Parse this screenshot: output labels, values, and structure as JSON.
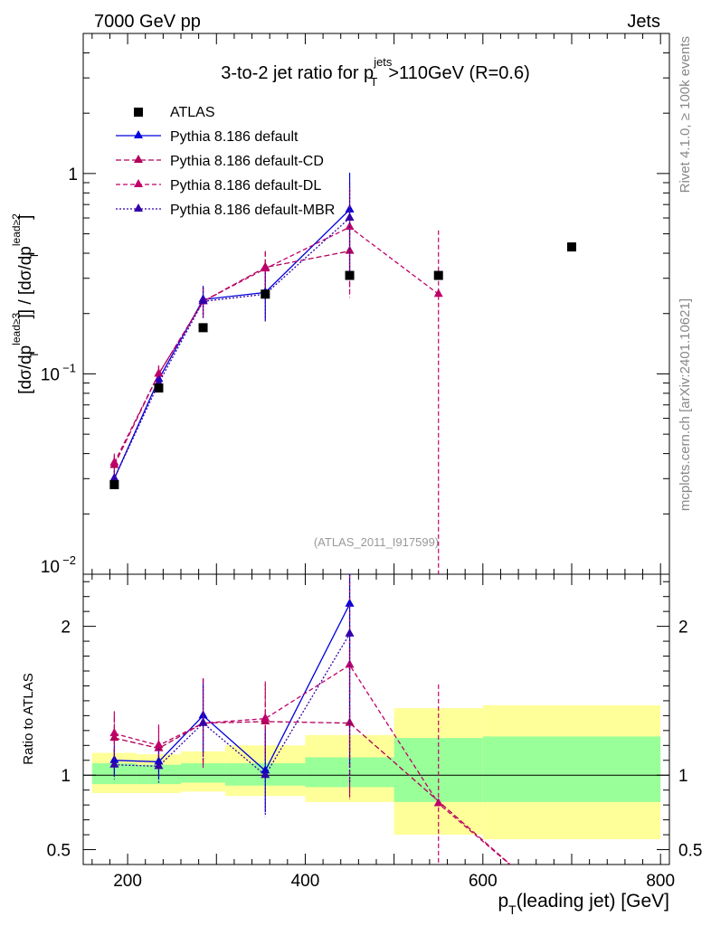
{
  "header": {
    "energy_label": "7000 GeV pp",
    "category_label": "Jets"
  },
  "side_labels": {
    "rivet": "Rivet 4.1.0, ≥ 100k events",
    "mcplots": "mcplots.cern.ch [arXiv:2401.10621]"
  },
  "chart_data": [
    {
      "type": "line",
      "scale": "log",
      "title_parts": {
        "prefix": "3-to-2 jet ratio for p",
        "sup": "jets",
        "sub": "T",
        "suffix": ">110GeV (R=0.6)"
      },
      "analysis_tag": "(ATLAS_2011_I917599)",
      "ylabel_parts": {
        "open": "[dσ/dp",
        "sup1": "lead≥3",
        "mid": "] / [dσ/dp",
        "sup2": "lead≥2",
        "close": "]",
        "sub": "T"
      },
      "xlim": [
        150,
        810
      ],
      "ylim": [
        0.01,
        5
      ],
      "yticks": [
        {
          "value": 1,
          "label": "1"
        },
        {
          "value": 0.1,
          "label": "10",
          "exp": "−1"
        },
        {
          "value": 0.01,
          "label": "10",
          "exp": "−2"
        }
      ],
      "data": {
        "name": "ATLAS",
        "x": [
          185,
          235,
          285,
          355,
          450,
          550,
          700
        ],
        "y": [
          0.028,
          0.085,
          0.17,
          0.25,
          0.31,
          0.31,
          0.43
        ]
      },
      "series": [
        {
          "name": "Pythia 8.186 default",
          "color": "#0000dd",
          "dash": "",
          "x": [
            185,
            235,
            285,
            355,
            450
          ],
          "y": [
            0.03,
            0.094,
            0.235,
            0.255,
            0.66
          ],
          "err": [
            0.003,
            0.008,
            0.04,
            0.07,
            0.35
          ]
        },
        {
          "name": "Pythia 8.186 default-CD",
          "color": "#b0005a",
          "dash": "6,3",
          "x": [
            185,
            235,
            285,
            355,
            450
          ],
          "y": [
            0.035,
            0.1,
            0.23,
            0.34,
            0.41
          ],
          "err": [
            0.004,
            0.01,
            0.04,
            0.07,
            0.15
          ]
        },
        {
          "name": "Pythia 8.186 default-DL",
          "color": "#c0006a",
          "dash": "5,3",
          "x": [
            185,
            235,
            285,
            355,
            450,
            550
          ],
          "y": [
            0.036,
            0.1,
            0.23,
            0.335,
            0.54,
            0.25
          ],
          "err": [
            0.004,
            0.01,
            0.04,
            0.07,
            0.3,
            0.27
          ]
        },
        {
          "name": "Pythia 8.186 default-MBR",
          "color": "#3300aa",
          "dash": "2,2",
          "x": [
            185,
            235,
            285,
            355,
            450
          ],
          "y": [
            0.03,
            0.09,
            0.23,
            0.25,
            0.6
          ],
          "err": [
            0.003,
            0.008,
            0.04,
            0.07,
            0.3
          ]
        }
      ]
    },
    {
      "type": "line",
      "ylabel": "Ratio to ATLAS",
      "xlabel_parts": {
        "prefix": "p",
        "sub": "T",
        "suffix": "(leading jet) [GeV]"
      },
      "xlim": [
        150,
        810
      ],
      "ylim": [
        0.4,
        2.35
      ],
      "xticks": [
        200,
        400,
        600,
        800
      ],
      "yticks": [
        {
          "value": 2,
          "label": "2"
        },
        {
          "value": 1,
          "label": "1"
        },
        {
          "value": 0.5,
          "label": "0.5"
        }
      ],
      "bands": [
        {
          "x0": 160,
          "x1": 210,
          "stat": [
            0.94,
            1.08
          ],
          "total": [
            0.88,
            1.15
          ]
        },
        {
          "x0": 210,
          "x1": 260,
          "stat": [
            0.94,
            1.07
          ],
          "total": [
            0.88,
            1.14
          ]
        },
        {
          "x0": 260,
          "x1": 310,
          "stat": [
            0.95,
            1.08
          ],
          "total": [
            0.89,
            1.16
          ]
        },
        {
          "x0": 310,
          "x1": 400,
          "stat": [
            0.93,
            1.08
          ],
          "total": [
            0.86,
            1.2
          ]
        },
        {
          "x0": 400,
          "x1": 500,
          "stat": [
            0.92,
            1.12
          ],
          "total": [
            0.82,
            1.27
          ]
        },
        {
          "x0": 500,
          "x1": 600,
          "stat": [
            0.82,
            1.25
          ],
          "total": [
            0.6,
            1.45
          ]
        },
        {
          "x0": 600,
          "x1": 800,
          "stat": [
            0.82,
            1.26
          ],
          "total": [
            0.57,
            1.47
          ]
        }
      ],
      "series": [
        {
          "name": "Pythia 8.186 default",
          "color": "#0000dd",
          "dash": "",
          "x": [
            185,
            235,
            285,
            355,
            450
          ],
          "y": [
            1.1,
            1.09,
            1.4,
            1.03,
            2.15
          ],
          "err": [
            0.1,
            0.12,
            0.25,
            0.28,
            1.1
          ]
        },
        {
          "name": "Pythia 8.186 default-CD",
          "color": "#b0005a",
          "dash": "6,3",
          "x": [
            185,
            235,
            285,
            355,
            450,
            650
          ],
          "y": [
            1.25,
            1.18,
            1.35,
            1.36,
            1.35,
            0.3
          ],
          "err": [
            0.15,
            0.14,
            0.3,
            0.25,
            0.5,
            0
          ]
        },
        {
          "name": "Pythia 8.186 default-DL",
          "color": "#c0006a",
          "dash": "5,3",
          "x": [
            185,
            235,
            285,
            355,
            450,
            550,
            650
          ],
          "y": [
            1.28,
            1.2,
            1.35,
            1.38,
            1.74,
            0.81,
            0.3
          ],
          "err": [
            0.15,
            0.14,
            0.3,
            0.25,
            0.9,
            0.8,
            0
          ]
        },
        {
          "name": "Pythia 8.186 default-MBR",
          "color": "#3300aa",
          "dash": "2,2",
          "x": [
            185,
            235,
            285,
            355,
            450
          ],
          "y": [
            1.07,
            1.06,
            1.35,
            1.0,
            1.95
          ],
          "err": [
            0.1,
            0.12,
            0.25,
            0.28,
            1.0
          ]
        }
      ]
    }
  ]
}
